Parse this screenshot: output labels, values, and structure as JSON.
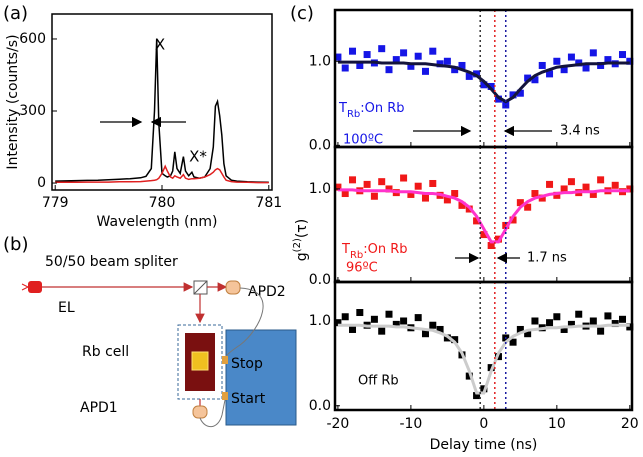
{
  "chart_data": [
    {
      "type": "line",
      "label": "(a)",
      "xlabel": "Wavelength (nm)",
      "ylabel": "Intensity (counts/s)",
      "xlim": [
        778.97,
        781.03
      ],
      "xticks": [
        779,
        780,
        781
      ],
      "ylim": [
        -29,
        704
      ],
      "yticks": [
        0,
        300,
        600
      ],
      "annotations": [
        "X",
        "X*"
      ],
      "x": [
        779.0,
        779.1,
        779.2,
        779.3,
        779.4,
        779.5,
        779.6,
        779.7,
        779.8,
        779.85,
        779.9,
        779.93,
        779.95,
        779.97,
        780.0,
        780.03,
        780.05,
        780.08,
        780.1,
        780.12,
        780.14,
        780.17,
        780.2,
        780.22,
        780.25,
        780.28,
        780.3,
        780.35,
        780.4,
        780.45,
        780.48,
        780.5,
        780.52,
        780.54,
        780.56,
        780.58,
        780.6,
        780.65,
        780.7,
        780.8,
        780.9,
        781.0
      ],
      "series": [
        {
          "color": "#000000",
          "values": [
            8,
            9,
            10,
            11,
            12,
            14,
            16,
            18,
            22,
            28,
            60,
            300,
            600,
            250,
            40,
            30,
            25,
            30,
            50,
            130,
            60,
            40,
            110,
            50,
            30,
            45,
            25,
            20,
            25,
            60,
            150,
            320,
            340,
            280,
            200,
            80,
            30,
            12,
            8,
            5,
            4,
            3
          ]
        },
        {
          "color": "#e02020",
          "values": [
            3,
            3,
            3,
            4,
            4,
            4,
            5,
            5,
            6,
            8,
            10,
            12,
            14,
            20,
            40,
            70,
            50,
            25,
            20,
            30,
            25,
            20,
            35,
            20,
            15,
            18,
            18,
            20,
            25,
            35,
            45,
            55,
            60,
            55,
            40,
            25,
            12,
            6,
            4,
            3,
            2,
            2
          ]
        }
      ]
    },
    {
      "type": "scatter",
      "label": "(c)",
      "xlabel": "Delay time (ns)",
      "ylabel_parts": [
        "g",
        "(2)",
        "(τ)"
      ],
      "xlim": [
        -20.4,
        20.3
      ],
      "xticks": [
        -20,
        -10,
        0,
        10,
        20
      ],
      "x": [
        -20,
        -19,
        -18,
        -17,
        -16,
        -15,
        -14,
        -13,
        -12,
        -11,
        -10,
        -9,
        -8,
        -7,
        -6,
        -5,
        -4,
        -3,
        -2,
        -1,
        0,
        1,
        2,
        3,
        4,
        5,
        6,
        7,
        8,
        9,
        10,
        11,
        12,
        13,
        14,
        15,
        16,
        17,
        18,
        19,
        20
      ],
      "vlines": [
        {
          "value": -0.5,
          "color": "#333333"
        },
        {
          "value": 3,
          "color": "#1a1aa0"
        },
        {
          "value": 1.5,
          "color": "#e02020"
        }
      ],
      "panels": [
        {
          "ylim": [
            -0.02,
            1.61
          ],
          "yticks": [
            {
              "value": 0,
              "label": "0.0"
            },
            {
              "value": 1,
              "label": "1.0"
            }
          ],
          "annotation_parts": [
            "T",
            "Rb",
            ":On Rb"
          ],
          "temperature": "100ºC",
          "width_label": "3.4 ns",
          "series": [
            {
              "color": "#1515e6",
              "values": [
                1.05,
                0.92,
                1.12,
                0.95,
                1.08,
                0.98,
                1.15,
                0.9,
                1.02,
                1.1,
                0.94,
                1.06,
                0.88,
                1.12,
                0.97,
                1.0,
                0.9,
                0.95,
                0.82,
                0.85,
                0.72,
                0.7,
                0.55,
                0.48,
                0.6,
                0.62,
                0.8,
                0.78,
                0.95,
                0.85,
                1.0,
                0.9,
                1.05,
                0.98,
                0.92,
                1.1,
                0.95,
                1.02,
                0.97,
                1.08,
                1.0
              ]
            },
            {
              "color": "#14143c",
              "values": [
                0.99,
                0.99,
                0.99,
                0.99,
                0.99,
                0.99,
                0.98,
                0.98,
                0.98,
                0.98,
                0.97,
                0.97,
                0.97,
                0.96,
                0.95,
                0.94,
                0.93,
                0.9,
                0.87,
                0.83,
                0.76,
                0.67,
                0.57,
                0.52,
                0.57,
                0.67,
                0.76,
                0.83,
                0.87,
                0.9,
                0.93,
                0.94,
                0.95,
                0.96,
                0.97,
                0.97,
                0.97,
                0.98,
                0.98,
                0.98,
                0.98
              ]
            }
          ]
        },
        {
          "ylim": [
            -0.02,
            1.46
          ],
          "yticks": [
            {
              "value": 0,
              "label": "0.0"
            },
            {
              "value": 1,
              "label": "1.0"
            }
          ],
          "annotation_parts": [
            "T",
            "Rb",
            ":On Rb"
          ],
          "temperature": "96ºC",
          "width_label": "1.7 ns",
          "series": [
            {
              "color": "#f01818",
              "values": [
                1.02,
                0.95,
                1.1,
                0.98,
                1.05,
                0.92,
                1.08,
                1.0,
                0.96,
                1.12,
                0.94,
                1.03,
                0.9,
                1.06,
                0.93,
                0.88,
                0.95,
                0.82,
                0.78,
                0.65,
                0.5,
                0.38,
                0.45,
                0.6,
                0.66,
                0.85,
                0.8,
                0.95,
                0.9,
                1.05,
                0.93,
                1.0,
                1.08,
                0.96,
                1.02,
                0.94,
                1.1,
                0.98,
                1.04,
                0.97,
                1.0
              ]
            },
            {
              "color": "#ff33cc",
              "values": [
                0.99,
                0.99,
                0.99,
                0.98,
                0.98,
                0.98,
                0.98,
                0.98,
                0.97,
                0.97,
                0.97,
                0.96,
                0.95,
                0.95,
                0.94,
                0.92,
                0.9,
                0.86,
                0.8,
                0.7,
                0.56,
                0.42,
                0.42,
                0.56,
                0.7,
                0.8,
                0.86,
                0.9,
                0.92,
                0.94,
                0.95,
                0.96,
                0.96,
                0.97,
                0.97,
                0.97,
                0.98,
                0.98,
                0.98,
                0.98,
                0.98
              ]
            }
          ]
        },
        {
          "ylim": [
            -0.05,
            1.46
          ],
          "yticks": [
            {
              "value": 0,
              "label": "0.0"
            },
            {
              "value": 1,
              "label": "1.0"
            }
          ],
          "annotation": "Off Rb",
          "series": [
            {
              "color": "#000000",
              "values": [
                0.98,
                1.05,
                0.9,
                1.1,
                0.95,
                1.02,
                0.88,
                1.08,
                0.96,
                1.0,
                0.92,
                1.04,
                0.85,
                0.95,
                0.9,
                0.8,
                0.78,
                0.6,
                0.35,
                0.12,
                0.2,
                0.45,
                0.58,
                0.8,
                0.75,
                0.9,
                0.85,
                1.0,
                0.92,
                0.98,
                1.05,
                0.9,
                0.96,
                1.08,
                0.94,
                1.0,
                0.88,
                1.06,
                0.97,
                1.02,
                0.93
              ]
            },
            {
              "color": "#cccccc",
              "values": [
                0.95,
                0.95,
                0.95,
                0.95,
                0.94,
                0.94,
                0.94,
                0.94,
                0.93,
                0.93,
                0.92,
                0.91,
                0.9,
                0.89,
                0.86,
                0.82,
                0.75,
                0.62,
                0.41,
                0.15,
                0.15,
                0.41,
                0.62,
                0.75,
                0.82,
                0.86,
                0.89,
                0.9,
                0.91,
                0.92,
                0.92,
                0.93,
                0.93,
                0.94,
                0.94,
                0.94,
                0.94,
                0.95,
                0.95,
                0.95,
                0.95
              ]
            }
          ]
        }
      ]
    }
  ],
  "diagram": {
    "label": "(b)",
    "splitter": "50/50 beam spliter",
    "source": "EL",
    "detector2": "APD2",
    "cell": "Rb cell",
    "detector1": "APD1",
    "stop": "Stop",
    "start": "Start"
  }
}
